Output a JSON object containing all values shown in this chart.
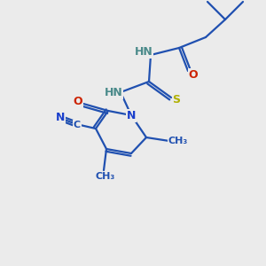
{
  "background_color": "#ebebeb",
  "bond_color": "#2050b0",
  "atom_colors": {
    "N": "#1a3fcc",
    "O": "#cc2200",
    "S": "#b0b000",
    "C": "#2050b0",
    "HN": "#4a8a8a"
  },
  "figsize": [
    3.0,
    3.0
  ],
  "dpi": 100
}
